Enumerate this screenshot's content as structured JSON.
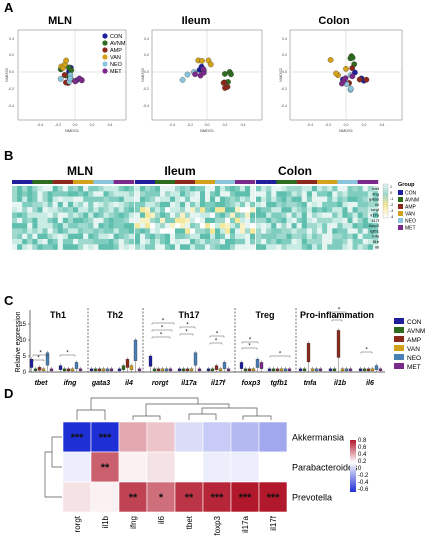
{
  "panel_labels": [
    "A",
    "B",
    "C",
    "D"
  ],
  "panelA": {
    "plots": [
      {
        "title": "MLN",
        "xlabel": "NMDS1",
        "ylabel": "NMDS2",
        "xticks": [
          "-0.4",
          "-0.2",
          "0.0",
          "0.2",
          "0.4"
        ],
        "yticks": [
          "0.4",
          "0.2",
          "0.0",
          "-0.2",
          "-0.4"
        ]
      },
      {
        "title": "Ileum",
        "xlabel": "NMDS1",
        "ylabel": "NMDS2",
        "xticks": [
          "-0.4",
          "-0.2",
          "0.0",
          "0.2",
          "0.4"
        ],
        "yticks": [
          "0.4",
          "0.2",
          "0.0",
          "-0.2",
          "-0.4"
        ]
      },
      {
        "title": "Colon",
        "xlabel": "NMDS1",
        "ylabel": "NMDS2",
        "xticks": [
          "-0.4",
          "-0.2",
          "0.0",
          "0.2",
          "0.4"
        ],
        "yticks": [
          "0.4",
          "0.2",
          "0.0",
          "-0.2",
          "-0.4"
        ]
      }
    ],
    "legend": [
      "CON",
      "AVNM",
      "AMP",
      "VAN",
      "NEO",
      "MET"
    ]
  },
  "groups": [
    {
      "name": "CON",
      "color": "#1f1f9e"
    },
    {
      "name": "AVNM",
      "color": "#2e6b1f"
    },
    {
      "name": "AMP",
      "color": "#8b2a1c"
    },
    {
      "name": "VAN",
      "color": "#d4a21a"
    },
    {
      "name": "NEO",
      "color": "#8ac5dd"
    },
    {
      "name": "MET",
      "color": "#7b2a8b"
    }
  ],
  "panelB": {
    "titles": [
      "MLN",
      "Ileum",
      "Colon"
    ],
    "genes": [
      "tbet",
      "ifng",
      "gata3",
      "il4",
      "rorgt",
      "il17a",
      "il17f",
      "foxp3",
      "tgfb1",
      "tnfa",
      "il1b",
      "il6"
    ],
    "scale_ticks": [
      "1",
      "0",
      "-1",
      "-2",
      "-3",
      "-4"
    ],
    "group_title": "Group"
  },
  "panelC": {
    "ylabel": "Relative expression",
    "yticks": [
      "0",
      "5",
      "10",
      "15"
    ],
    "categories": [
      {
        "label": "Th1",
        "genes": [
          "tbet",
          "ifng"
        ]
      },
      {
        "label": "Th2",
        "genes": [
          "gata3",
          "il4"
        ]
      },
      {
        "label": "Th17",
        "genes": [
          "rorgt",
          "il17a",
          "il17f"
        ]
      },
      {
        "label": "Treg",
        "genes": [
          "foxp3",
          "tgfb1"
        ]
      },
      {
        "label": "Pro-inflammation",
        "genes": [
          "tnfa",
          "il1b",
          "il6"
        ]
      }
    ],
    "star": "*"
  },
  "panelD": {
    "rows": [
      "Akkermansia",
      "Parabacteroides",
      "Prevotella"
    ],
    "cols": [
      "rorgt",
      "il1b",
      "ifng",
      "il6",
      "tbet",
      "foxp3",
      "il17a",
      "il17f"
    ],
    "cells": [
      [
        "***",
        "***",
        "",
        "",
        "",
        "",
        "",
        ""
      ],
      [
        "",
        "**",
        "",
        "",
        "",
        "",
        "",
        ""
      ],
      [
        "",
        "",
        "**",
        "*",
        "**",
        "***",
        "***",
        "***"
      ]
    ],
    "scale_ticks": [
      "0.8",
      "0.6",
      "0.4",
      "0.2",
      "0",
      "-0.2",
      "-0.4",
      "-0.6"
    ]
  },
  "chart_data": {
    "type": "heatmap",
    "rows": [
      "Akkermansia",
      "Parabacteroides",
      "Prevotella"
    ],
    "cols": [
      "rorgt",
      "il1b",
      "ifng",
      "il6",
      "tbet",
      "foxp3",
      "il17a",
      "il17f"
    ],
    "values": [
      [
        -0.65,
        -0.6,
        0.3,
        0.2,
        -0.1,
        -0.15,
        -0.2,
        -0.25
      ],
      [
        -0.05,
        0.55,
        0.05,
        0.1,
        0.0,
        -0.05,
        -0.05,
        0.0
      ],
      [
        0.1,
        0.05,
        0.65,
        0.5,
        0.7,
        0.75,
        0.85,
        0.85
      ]
    ],
    "scale_range": [
      -0.6,
      0.8
    ]
  }
}
